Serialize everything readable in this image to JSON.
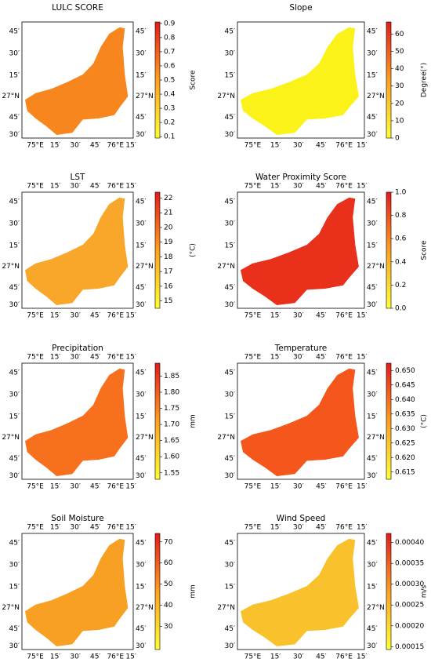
{
  "lon_labels": [
    "75°E",
    "15′",
    "30′",
    "45′",
    "76°E",
    "15′"
  ],
  "lat_labels": [
    "45′",
    "30′",
    "15′",
    "27°N",
    "45′",
    "30′"
  ],
  "colormap": [
    "#ffff33",
    "#ffa020",
    "#e41a1c"
  ],
  "panels": [
    {
      "title": "LULC SCORE",
      "colorbar": {
        "label": "Score",
        "lim": [
          0.09,
          0.91
        ],
        "ticks": [
          0.1,
          0.2,
          0.3,
          0.4,
          0.5,
          0.6,
          0.7,
          0.8,
          0.9
        ]
      },
      "map_color": "#f7861e"
    },
    {
      "title": "Slope",
      "colorbar": {
        "label": "Degree(°)",
        "lim": [
          0,
          67
        ],
        "ticks": [
          0,
          10,
          20,
          30,
          40,
          50,
          60
        ]
      },
      "map_color": "#fbf21a"
    },
    {
      "title": "LST",
      "colorbar": {
        "label": "(°C)",
        "lim": [
          14.5,
          22.4
        ],
        "ticks": [
          15,
          16,
          17,
          18,
          19,
          20,
          21,
          22
        ]
      },
      "map_color": "#f9a72a"
    },
    {
      "title": "Water Proximity Score",
      "colorbar": {
        "label": "Score",
        "lim": [
          0,
          1
        ],
        "ticks": [
          {
            "value": 0,
            "label": "0.0"
          },
          0.2,
          0.4,
          0.6,
          0.8,
          {
            "value": 1,
            "label": "1.0"
          }
        ]
      },
      "map_color": "#e8301b"
    },
    {
      "title": "Precipitation",
      "colorbar": {
        "label": "mm",
        "lim": [
          1.53,
          1.89
        ],
        "ticks": [
          1.55,
          {
            "value": 1.6,
            "label": "1.60"
          },
          1.65,
          {
            "value": 1.7,
            "label": "1.70"
          },
          1.75,
          {
            "value": 1.8,
            "label": "1.80"
          },
          1.85
        ]
      },
      "map_color": "#f7701e"
    },
    {
      "title": "Temperature",
      "colorbar": {
        "label": "(°C)",
        "lim": [
          0.6125,
          0.6525
        ],
        "ticks": [
          0.615,
          {
            "value": 0.62,
            "label": "0.620"
          },
          0.625,
          {
            "value": 0.63,
            "label": "0.630"
          },
          0.635,
          {
            "value": 0.64,
            "label": "0.640"
          },
          0.645,
          {
            "value": 0.65,
            "label": "0.650"
          }
        ]
      },
      "map_color": "#f4561c"
    },
    {
      "title": "Soil Moisture",
      "colorbar": {
        "label": "mm",
        "lim": [
          19,
          74
        ],
        "ticks": [
          30,
          40,
          50,
          60,
          70
        ]
      },
      "map_color": "#f8a024"
    },
    {
      "title": "Wind Speed",
      "colorbar": {
        "label": "m/s",
        "lim": [
          0.000143,
          0.000422
        ],
        "ticks": [
          0.00015,
          {
            "value": 0.0002,
            "label": "0.00020"
          },
          0.00025,
          {
            "value": 0.0003,
            "label": "0.00030"
          },
          0.00035,
          {
            "value": 0.0004,
            "label": "0.00040"
          }
        ]
      },
      "map_color": "#f9c22c"
    }
  ]
}
